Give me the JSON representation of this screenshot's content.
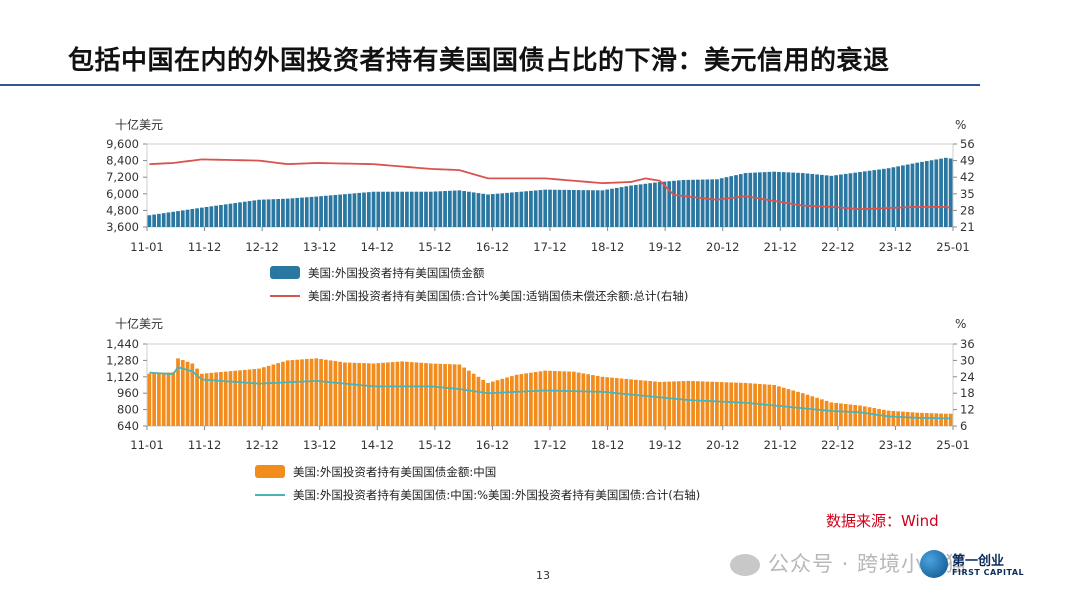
{
  "slide": {
    "title": "包括中国在内的外国投资者持有美国国债占比的下滑：美元信用的衰退",
    "source": "数据来源：Wind",
    "page_number": "13",
    "watermark": "公众号 · 跨境小鱼猫",
    "logo_cn": "第一创业",
    "logo_en": "FIRST CAPITAL"
  },
  "chart_data": [
    {
      "type": "bar",
      "left_unit": "十亿美元",
      "right_unit": "%",
      "xtick_labels": [
        "11-01",
        "11-12",
        "12-12",
        "13-12",
        "14-12",
        "15-12",
        "16-12",
        "17-12",
        "18-12",
        "19-12",
        "20-12",
        "21-12",
        "22-12",
        "23-12",
        "25-01"
      ],
      "ylim": [
        3600,
        9600
      ],
      "yticks": [
        "3,600",
        "4,800",
        "6,000",
        "7,200",
        "8,400",
        "9,600"
      ],
      "y2lim": [
        21,
        56
      ],
      "y2ticks": [
        "21",
        "28",
        "35",
        "42",
        "49",
        "56"
      ],
      "bar_color": "#2a77a2",
      "line_color": "#d9534f",
      "series": [
        {
          "name": "美国:外国投资者持有美国国债金额",
          "kind": "bar",
          "axis": "left",
          "anchors": [
            [
              "11-01",
              4450
            ],
            [
              "11-12",
              5000
            ],
            [
              "12-12",
              5570
            ],
            [
              "13-06",
              5650
            ],
            [
              "13-12",
              5800
            ],
            [
              "14-12",
              6150
            ],
            [
              "15-12",
              6150
            ],
            [
              "16-06",
              6250
            ],
            [
              "16-12",
              5950
            ],
            [
              "17-12",
              6300
            ],
            [
              "18-12",
              6250
            ],
            [
              "19-06",
              6600
            ],
            [
              "19-12",
              6850
            ],
            [
              "20-05",
              7000
            ],
            [
              "20-12",
              7050
            ],
            [
              "21-06",
              7500
            ],
            [
              "21-12",
              7600
            ],
            [
              "22-06",
              7500
            ],
            [
              "22-12",
              7300
            ],
            [
              "23-12",
              7850
            ],
            [
              "24-06",
              8250
            ],
            [
              "24-12",
              8600
            ],
            [
              "25-01",
              8550
            ]
          ]
        },
        {
          "name": "美国:外国投资者持有美国国债:合计%美国:适销国债未偿还余额:总计(右轴)",
          "kind": "line",
          "axis": "right",
          "anchors": [
            [
              "11-01",
              47.5
            ],
            [
              "11-06",
              48.0
            ],
            [
              "11-12",
              49.5
            ],
            [
              "12-12",
              49.0
            ],
            [
              "13-06",
              47.5
            ],
            [
              "13-12",
              48.0
            ],
            [
              "14-12",
              47.5
            ],
            [
              "15-06",
              46.5
            ],
            [
              "15-12",
              45.5
            ],
            [
              "16-06",
              45.0
            ],
            [
              "16-12",
              41.5
            ],
            [
              "17-12",
              41.5
            ],
            [
              "18-06",
              40.5
            ],
            [
              "18-12",
              39.5
            ],
            [
              "19-06",
              40.0
            ],
            [
              "19-09",
              41.5
            ],
            [
              "19-12",
              40.5
            ],
            [
              "20-03",
              34.5
            ],
            [
              "20-12",
              32.5
            ],
            [
              "21-06",
              34.0
            ],
            [
              "21-12",
              32.0
            ],
            [
              "22-06",
              30.0
            ],
            [
              "22-12",
              29.5
            ],
            [
              "23-06",
              28.5
            ],
            [
              "23-12",
              29.0
            ],
            [
              "24-06",
              29.5
            ],
            [
              "24-12",
              29.5
            ],
            [
              "25-01",
              29.0
            ]
          ]
        }
      ]
    },
    {
      "type": "bar",
      "left_unit": "十亿美元",
      "right_unit": "%",
      "xtick_labels": [
        "11-01",
        "11-12",
        "12-12",
        "13-12",
        "14-12",
        "15-12",
        "16-12",
        "17-12",
        "18-12",
        "19-12",
        "20-12",
        "21-12",
        "22-12",
        "23-12",
        "25-01"
      ],
      "ylim": [
        640,
        1440
      ],
      "yticks": [
        "640",
        "800",
        "960",
        "1,120",
        "1,280",
        "1,440"
      ],
      "y2lim": [
        6,
        36
      ],
      "y2ticks": [
        "6",
        "12",
        "18",
        "24",
        "30",
        "36"
      ],
      "bar_color": "#f28c1c",
      "line_color": "#4ab3b8",
      "series": [
        {
          "name": "美国:外国投资者持有美国国债金额:中国",
          "kind": "bar",
          "axis": "left",
          "anchors": [
            [
              "11-01",
              1150
            ],
            [
              "11-06",
              1165
            ],
            [
              "11-07",
              1300
            ],
            [
              "11-10",
              1250
            ],
            [
              "11-12",
              1150
            ],
            [
              "12-12",
              1200
            ],
            [
              "13-06",
              1280
            ],
            [
              "13-12",
              1300
            ],
            [
              "14-06",
              1260
            ],
            [
              "14-12",
              1250
            ],
            [
              "15-06",
              1270
            ],
            [
              "15-12",
              1250
            ],
            [
              "16-06",
              1240
            ],
            [
              "16-12",
              1060
            ],
            [
              "17-06",
              1140
            ],
            [
              "17-12",
              1180
            ],
            [
              "18-06",
              1170
            ],
            [
              "18-12",
              1120
            ],
            [
              "19-12",
              1070
            ],
            [
              "20-06",
              1080
            ],
            [
              "20-12",
              1070
            ],
            [
              "21-06",
              1060
            ],
            [
              "21-12",
              1040
            ],
            [
              "22-06",
              960
            ],
            [
              "22-12",
              870
            ],
            [
              "23-06",
              840
            ],
            [
              "23-12",
              790
            ],
            [
              "24-06",
              770
            ],
            [
              "24-12",
              760
            ],
            [
              "25-01",
              760
            ]
          ]
        },
        {
          "name": "美国:外国投资者持有美国国债:中国:%美国:外国投资者持有美国国债:合计(右轴)",
          "kind": "line",
          "axis": "right",
          "anchors": [
            [
              "11-01",
              25.5
            ],
            [
              "11-06",
              25.0
            ],
            [
              "11-07",
              27.5
            ],
            [
              "11-10",
              26.0
            ],
            [
              "11-12",
              23.0
            ],
            [
              "12-12",
              21.5
            ],
            [
              "13-12",
              22.5
            ],
            [
              "14-12",
              20.5
            ],
            [
              "15-12",
              20.5
            ],
            [
              "16-06",
              19.5
            ],
            [
              "16-12",
              18.0
            ],
            [
              "17-12",
              19.0
            ],
            [
              "18-12",
              18.5
            ],
            [
              "19-12",
              16.5
            ],
            [
              "20-06",
              15.5
            ],
            [
              "20-12",
              15.0
            ],
            [
              "21-06",
              14.5
            ],
            [
              "21-12",
              13.5
            ],
            [
              "22-06",
              12.5
            ],
            [
              "22-12",
              11.5
            ],
            [
              "23-06",
              11.0
            ],
            [
              "23-12",
              9.5
            ],
            [
              "24-06",
              9.0
            ],
            [
              "24-12",
              8.8
            ],
            [
              "25-01",
              8.8
            ]
          ]
        }
      ]
    }
  ]
}
